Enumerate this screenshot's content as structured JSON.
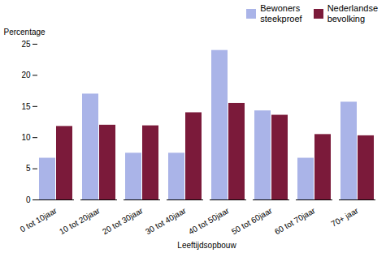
{
  "chart_data": {
    "type": "bar",
    "categories": [
      "0 tot 10jaar",
      "10 tot 20jaar",
      "20 tot 30jaar",
      "30 tot 40jaar",
      "40 tot 50jaar",
      "50 tot 60jaar",
      "60 tot 70jaar",
      "70+ jaar"
    ],
    "series": [
      {
        "name": "Bewoners\nsteekproef",
        "color": "#aab4e8",
        "values": [
          6.7,
          17.0,
          7.5,
          7.5,
          24.0,
          14.3,
          6.7,
          15.7
        ]
      },
      {
        "name": "Nederlandse\nbevolking",
        "color": "#7b1a3a",
        "values": [
          11.8,
          12.0,
          11.9,
          14.0,
          15.5,
          13.6,
          10.5,
          10.3
        ]
      }
    ],
    "xlabel": "Leeftijdsopbouw",
    "ylabel": "Percentage",
    "ylim": [
      0,
      25
    ],
    "yticks": [
      0,
      5,
      10,
      15,
      20,
      25
    ],
    "grid": false,
    "legend": "upper right"
  }
}
